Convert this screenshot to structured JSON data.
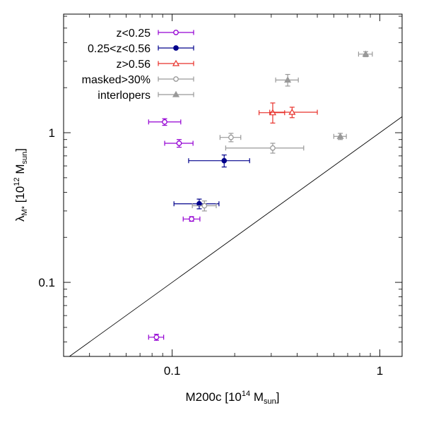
{
  "chart_data": {
    "type": "scatter",
    "x_scale": "log",
    "y_scale": "log",
    "xlim": [
      0.03,
      1.28
    ],
    "ylim": [
      0.032,
      6.2
    ],
    "x_ticks": [
      {
        "value": 0.1,
        "label": "0.1"
      },
      {
        "value": 1,
        "label": "1"
      }
    ],
    "y_ticks": [
      {
        "value": 0.1,
        "label": "0.1"
      },
      {
        "value": 1,
        "label": "1"
      }
    ],
    "xlabel": {
      "text": "M200c [10",
      "sup": "14",
      "mid": " M",
      "sub": "sun",
      "end": "]"
    },
    "ylabel": {
      "text": "λ",
      "sub1": "M*",
      "mid": " [10",
      "sup": "12",
      "mid2": " M",
      "sub2": "sun",
      "end": "]"
    },
    "reference_line": {
      "label": "one-to-one",
      "slope": 1,
      "intercept": 0
    },
    "legend_position": "top-left",
    "series": [
      {
        "name": "z<0.25",
        "color": "#9400d3",
        "marker": "open-circle",
        "points": [
          {
            "x": 0.092,
            "y": 1.18,
            "xerr": [
              0.077,
              0.11
            ],
            "yerr": [
              1.12,
              1.24
            ]
          },
          {
            "x": 0.108,
            "y": 0.85,
            "xerr": [
              0.092,
              0.126
            ],
            "yerr": [
              0.8,
              0.9
            ]
          },
          {
            "x": 0.124,
            "y": 0.265,
            "xerr": [
              0.113,
              0.136
            ],
            "yerr": [
              0.256,
              0.275
            ]
          },
          {
            "x": 0.084,
            "y": 0.043,
            "xerr": [
              0.077,
              0.091
            ],
            "yerr": [
              0.041,
              0.045
            ]
          }
        ]
      },
      {
        "name": "0.25<z<0.56",
        "color": "#00008b",
        "marker": "filled-circle",
        "points": [
          {
            "x": 0.178,
            "y": 0.65,
            "xerr": [
              0.12,
              0.236
            ],
            "yerr": [
              0.59,
              0.71
            ]
          },
          {
            "x": 0.135,
            "y": 0.335,
            "xerr": [
              0.102,
              0.168
            ],
            "yerr": [
              0.31,
              0.36
            ]
          }
        ]
      },
      {
        "name": "z>0.56",
        "color": "#e8302a",
        "marker": "open-triangle",
        "points": [
          {
            "x": 0.305,
            "y": 1.36,
            "xerr": [
              0.262,
              0.348
            ],
            "yerr": [
              1.16,
              1.58
            ]
          },
          {
            "x": 0.378,
            "y": 1.37,
            "xerr": [
              0.295,
              0.5
            ],
            "yerr": [
              1.26,
              1.48
            ]
          }
        ]
      },
      {
        "name": "masked>30%",
        "color": "#999999",
        "marker": "open-circle",
        "points": [
          {
            "x": 0.192,
            "y": 0.93,
            "xerr": [
              0.17,
              0.214
            ],
            "yerr": [
              0.87,
              0.99
            ]
          },
          {
            "x": 0.305,
            "y": 0.79,
            "xerr": [
              0.181,
              0.43
            ],
            "yerr": [
              0.73,
              0.85
            ]
          },
          {
            "x": 0.143,
            "y": 0.325,
            "xerr": [
              0.125,
              0.163
            ],
            "yerr": [
              0.3,
              0.35
            ]
          }
        ]
      },
      {
        "name": "interlopers",
        "color": "#999999",
        "marker": "filled-triangle",
        "points": [
          {
            "x": 0.36,
            "y": 2.25,
            "xerr": [
              0.315,
              0.405
            ],
            "yerr": [
              2.05,
              2.45
            ]
          },
          {
            "x": 0.855,
            "y": 3.35,
            "xerr": [
              0.79,
              0.92
            ],
            "yerr": [
              3.22,
              3.48
            ]
          },
          {
            "x": 0.645,
            "y": 0.945,
            "xerr": [
              0.6,
              0.69
            ],
            "yerr": [
              0.9,
              0.99
            ]
          }
        ]
      }
    ]
  }
}
